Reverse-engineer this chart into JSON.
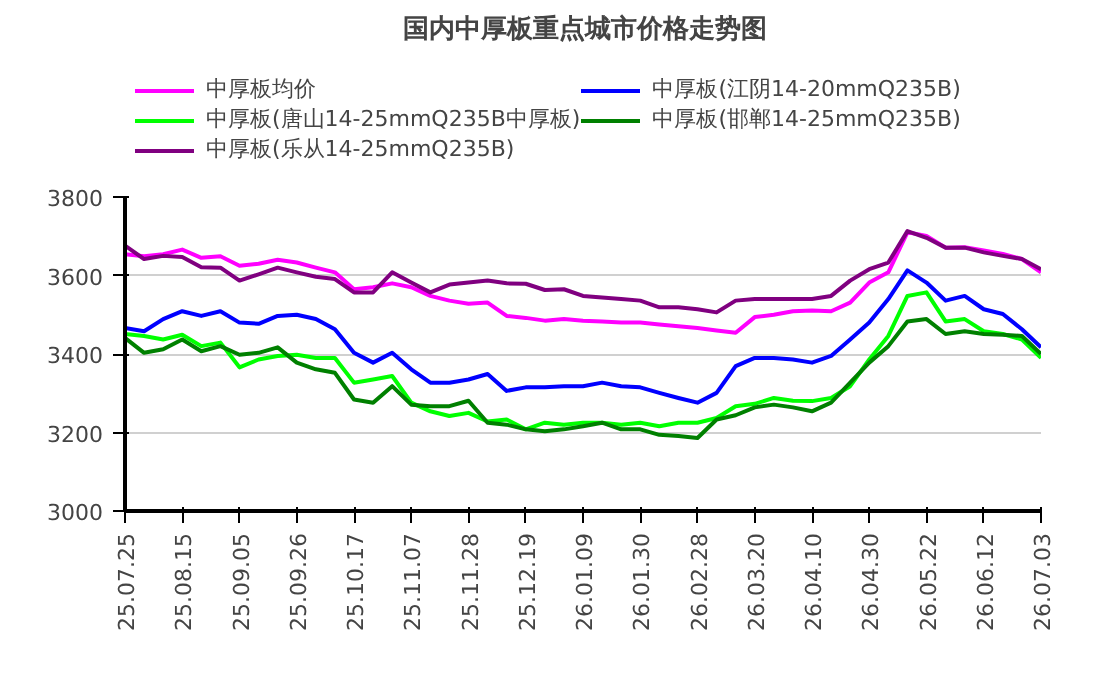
{
  "chart_data": {
    "type": "line",
    "title": "国内中厚板重点城市价格走势图",
    "categories": [
      "25.07.25",
      null,
      null,
      "25.08.15",
      null,
      null,
      "25.09.05",
      null,
      null,
      "25.09.26",
      null,
      null,
      "25.10.17",
      null,
      null,
      "25.11.07",
      null,
      null,
      "25.11.28",
      null,
      null,
      "25.12.19",
      null,
      null,
      "26.01.09",
      null,
      null,
      "26.01.30",
      null,
      null,
      "26.02.28",
      null,
      null,
      "26.03.20",
      null,
      null,
      "26.04.10",
      null,
      null,
      "26.04.30",
      null,
      null,
      "26.05.22",
      null,
      null,
      "26.06.12",
      null,
      null,
      "26.07.03"
    ],
    "series": [
      {
        "name": "中厚板均价",
        "color": "#ff00ff",
        "values": [
          3654,
          3649,
          3654,
          3666,
          3645,
          3649,
          3625,
          3630,
          3640,
          3633,
          3620,
          3608,
          3565,
          3570,
          3580,
          3570,
          3548,
          3536,
          3528,
          3531,
          3497,
          3492,
          3485,
          3489,
          3485,
          3483,
          3480,
          3480,
          3475,
          3471,
          3466,
          3460,
          3454,
          3494,
          3500,
          3509,
          3511,
          3509,
          3531,
          3582,
          3608,
          3710,
          3701,
          3671,
          3672,
          3664,
          3655,
          3642,
          3608
        ]
      },
      {
        "name": "中厚板(江阴14-20mmQ235B)",
        "color": "#0000ff",
        "values": [
          3466,
          3458,
          3489,
          3509,
          3497,
          3509,
          3480,
          3477,
          3497,
          3500,
          3489,
          3463,
          3403,
          3378,
          3403,
          3361,
          3327,
          3327,
          3335,
          3349,
          3306,
          3315,
          3315,
          3318,
          3318,
          3327,
          3318,
          3315,
          3301,
          3288,
          3276,
          3301,
          3369,
          3390,
          3390,
          3386,
          3378,
          3395,
          3437,
          3480,
          3540,
          3613,
          3582,
          3536,
          3548,
          3514,
          3502,
          3463,
          3417
        ]
      },
      {
        "name": "中厚板(唐山14-25mmQ235B中厚板)",
        "color": "#00ff00",
        "values": [
          3451,
          3446,
          3437,
          3449,
          3420,
          3429,
          3366,
          3386,
          3395,
          3398,
          3390,
          3390,
          3327,
          3335,
          3344,
          3276,
          3254,
          3242,
          3250,
          3228,
          3233,
          3208,
          3225,
          3220,
          3225,
          3225,
          3220,
          3225,
          3216,
          3225,
          3225,
          3237,
          3267,
          3273,
          3288,
          3281,
          3280,
          3288,
          3318,
          3386,
          3446,
          3548,
          3557,
          3483,
          3489,
          3458,
          3451,
          3437,
          3390
        ]
      },
      {
        "name": "中厚板(邯郸14-25mmQ235B)",
        "color": "#008000",
        "values": [
          3441,
          3403,
          3412,
          3437,
          3407,
          3420,
          3398,
          3403,
          3417,
          3378,
          3361,
          3352,
          3284,
          3276,
          3318,
          3271,
          3267,
          3267,
          3281,
          3225,
          3220,
          3208,
          3203,
          3208,
          3216,
          3225,
          3208,
          3208,
          3194,
          3191,
          3186,
          3233,
          3244,
          3264,
          3271,
          3264,
          3254,
          3276,
          3327,
          3378,
          3420,
          3483,
          3489,
          3451,
          3458,
          3451,
          3449,
          3446,
          3400
        ]
      },
      {
        "name": "中厚板(乐从14-25mmQ235B)",
        "color": "#800080",
        "values": [
          3676,
          3642,
          3650,
          3647,
          3621,
          3620,
          3587,
          3603,
          3620,
          3608,
          3597,
          3591,
          3557,
          3557,
          3608,
          3582,
          3557,
          3577,
          3582,
          3587,
          3580,
          3579,
          3563,
          3565,
          3548,
          3544,
          3540,
          3536,
          3519,
          3519,
          3514,
          3506,
          3536,
          3540,
          3540,
          3540,
          3540,
          3548,
          3587,
          3616,
          3633,
          3713,
          3696,
          3671,
          3671,
          3659,
          3650,
          3642,
          3616
        ]
      }
    ],
    "ylim": [
      3000,
      3800
    ],
    "yticks": [
      3000,
      3200,
      3400,
      3600,
      3800
    ],
    "grid": "y",
    "legend": "top",
    "line_style": "solid",
    "marker": "none"
  }
}
